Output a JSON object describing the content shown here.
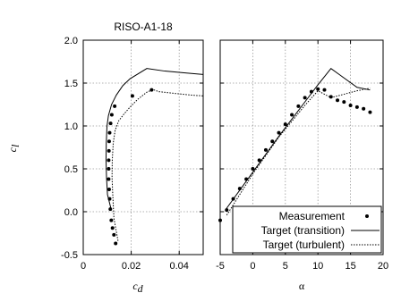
{
  "chart_data": [
    {
      "type": "scatter",
      "title": "RISO-A1-18",
      "xlabel": "c_d",
      "ylabel": "c_l",
      "xlim": [
        0,
        0.05
      ],
      "ylim": [
        -0.5,
        2.0
      ],
      "xticks": [
        "0",
        "0.02",
        "0.04"
      ],
      "xtick_values": [
        0,
        0.02,
        0.04
      ],
      "yticks": [
        "-0.5",
        "0.0",
        "0.5",
        "1.0",
        "1.5",
        "2.0"
      ],
      "ytick_values": [
        -0.5,
        0.0,
        0.5,
        1.0,
        1.5,
        2.0
      ],
      "grid": true,
      "series": [
        {
          "name": "Measurement",
          "style": "points",
          "x": [
            0.0135,
            0.0128,
            0.0122,
            0.0117,
            0.0113,
            0.011,
            0.0108,
            0.0106,
            0.0106,
            0.0106,
            0.0107,
            0.0108,
            0.011,
            0.0114,
            0.0119,
            0.0131,
            0.0205,
            0.0285
          ],
          "y": [
            -0.37,
            -0.27,
            -0.19,
            -0.1,
            0.03,
            0.15,
            0.26,
            0.38,
            0.5,
            0.6,
            0.71,
            0.82,
            0.92,
            1.03,
            1.13,
            1.23,
            1.35,
            1.42
          ]
        },
        {
          "name": "Target (transition)",
          "style": "solid",
          "x": [
            0.0117,
            0.0101,
            0.0097,
            0.0095,
            0.0096,
            0.0099,
            0.0105,
            0.0118,
            0.0138,
            0.0165,
            0.0195,
            0.0265,
            0.034,
            0.042,
            0.05
          ],
          "y": [
            0.02,
            0.2,
            0.4,
            0.6,
            0.8,
            1.0,
            1.12,
            1.25,
            1.36,
            1.47,
            1.55,
            1.67,
            1.64,
            1.62,
            1.6
          ]
        },
        {
          "name": "Target (turbulent)",
          "style": "dotted",
          "x": [
            0.0145,
            0.0128,
            0.0123,
            0.012,
            0.0121,
            0.0125,
            0.0133,
            0.0148,
            0.017,
            0.0195,
            0.0227,
            0.0268,
            0.0295,
            0.0315,
            0.038,
            0.045,
            0.05
          ],
          "y": [
            -0.34,
            -0.08,
            0.2,
            0.4,
            0.6,
            0.8,
            0.95,
            1.06,
            1.14,
            1.22,
            1.31,
            1.4,
            1.42,
            1.4,
            1.38,
            1.36,
            1.35
          ]
        }
      ]
    },
    {
      "type": "scatter",
      "title": "",
      "xlabel": "α",
      "ylabel": "",
      "xlim": [
        -5,
        20
      ],
      "ylim": [
        -0.5,
        2.0
      ],
      "xticks": [
        "-5",
        "0",
        "5",
        "10",
        "15",
        "20"
      ],
      "xtick_values": [
        -5,
        0,
        5,
        10,
        15,
        20
      ],
      "yticks": [],
      "ytick_values": [
        -0.5,
        0.0,
        0.5,
        1.0,
        1.5,
        2.0
      ],
      "grid": true,
      "legend": "bottom-right",
      "series": [
        {
          "name": "Measurement",
          "style": "points",
          "x": [
            -5,
            -4,
            -3,
            -2,
            -1,
            0,
            1,
            2,
            3,
            4,
            5,
            6,
            7,
            8,
            9,
            10,
            11,
            12,
            13,
            14,
            15,
            16,
            17,
            18
          ],
          "y": [
            -0.1,
            0.02,
            0.15,
            0.27,
            0.38,
            0.5,
            0.6,
            0.72,
            0.82,
            0.92,
            1.02,
            1.13,
            1.23,
            1.33,
            1.4,
            1.43,
            1.42,
            1.34,
            1.3,
            1.28,
            1.24,
            1.22,
            1.2,
            1.16
          ]
        },
        {
          "name": "Target (transition)",
          "style": "solid",
          "x": [
            -4.2,
            0,
            4,
            8,
            10,
            12,
            14,
            16,
            18
          ],
          "y": [
            0.02,
            0.46,
            0.88,
            1.28,
            1.48,
            1.67,
            1.56,
            1.45,
            1.42
          ]
        },
        {
          "name": "Target (turbulent)",
          "style": "dotted",
          "x": [
            -4,
            0,
            4,
            8,
            10,
            12,
            14,
            16,
            18
          ],
          "y": [
            -0.04,
            0.44,
            0.87,
            1.24,
            1.41,
            1.33,
            1.37,
            1.41,
            1.44
          ]
        }
      ]
    }
  ]
}
